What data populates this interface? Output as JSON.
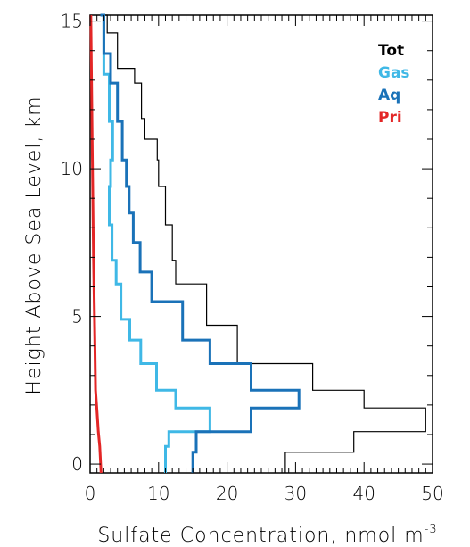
{
  "chart_data": {
    "type": "line",
    "xlabel": "Sulfate Concentration, nmol m",
    "xlabel_sup": "-3",
    "ylabel": "Height Above Sea Level, km",
    "xlim": [
      0,
      50
    ],
    "ylim": [
      -0.3,
      15.2
    ],
    "xticks": [
      0,
      10,
      20,
      30,
      40,
      50
    ],
    "yticks": [
      0,
      5,
      10,
      15
    ],
    "legend_position": "top-right",
    "series": [
      {
        "name": "Tot",
        "color": "#000000",
        "stroke": 1.2,
        "style": "step",
        "x": [
          28.5,
          38.5,
          49.0,
          40.0,
          32.5,
          21.5,
          17.0,
          12.5,
          12.0,
          11.0,
          10.0,
          9.8,
          8.0,
          7.5,
          6.5,
          4.0,
          2.5,
          1.5
        ],
        "y": [
          -0.3,
          0.4,
          1.1,
          1.9,
          2.5,
          3.4,
          4.7,
          6.1,
          6.9,
          8.1,
          9.4,
          10.3,
          11.0,
          11.7,
          12.9,
          13.4,
          14.6,
          15.2
        ]
      },
      {
        "name": "Gas",
        "color": "#3fb8e6",
        "stroke": 3,
        "style": "step",
        "x": [
          11.0,
          11.5,
          17.5,
          12.5,
          9.7,
          7.4,
          5.8,
          4.5,
          3.8,
          3.2,
          2.8,
          3.0,
          3.3,
          2.8,
          2.0,
          1.5
        ],
        "y": [
          -0.3,
          0.6,
          1.1,
          1.9,
          2.5,
          3.4,
          4.2,
          4.9,
          6.1,
          6.9,
          8.1,
          9.4,
          10.3,
          11.6,
          13.2,
          15.2
        ]
      },
      {
        "name": "Aq",
        "color": "#1a72b8",
        "stroke": 3,
        "style": "step",
        "x": [
          15.0,
          15.5,
          23.5,
          30.5,
          23.5,
          17.5,
          13.5,
          9.0,
          7.3,
          6.3,
          5.7,
          5.3,
          4.7,
          4.0,
          3.0,
          2.0,
          1.5
        ],
        "y": [
          -0.3,
          0.4,
          1.1,
          1.9,
          2.5,
          3.4,
          4.2,
          5.5,
          6.5,
          7.5,
          8.5,
          9.4,
          10.3,
          11.6,
          12.9,
          13.9,
          15.2
        ]
      },
      {
        "name": "Pri",
        "color": "#e32626",
        "stroke": 3,
        "style": "line",
        "x": [
          1.6,
          1.4,
          1.2,
          1.0,
          0.8,
          0.7,
          0.5,
          0.3,
          0.1
        ],
        "y": [
          -0.3,
          0.6,
          1.1,
          1.8,
          2.5,
          4.0,
          7.0,
          11.0,
          15.2
        ]
      }
    ]
  }
}
